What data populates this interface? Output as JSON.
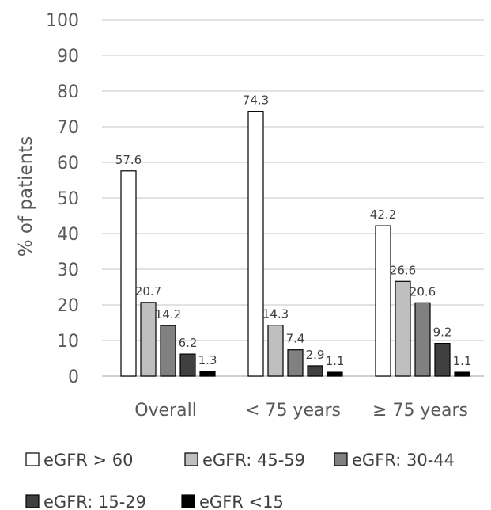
{
  "chart_data": {
    "type": "bar",
    "title": "",
    "xlabel": "",
    "ylabel": "% of patients",
    "ylim": [
      0,
      100
    ],
    "yticks": [
      0,
      10,
      20,
      30,
      40,
      50,
      60,
      70,
      80,
      90,
      100
    ],
    "grid": true,
    "legend_position": "bottom",
    "categories": [
      "Overall",
      "< 75 years",
      "≥ 75 years"
    ],
    "series": [
      {
        "name": "eGFR > 60",
        "color": "#ffffff",
        "values": [
          57.6,
          74.3,
          42.2
        ]
      },
      {
        "name": "eGFR: 45-59",
        "color": "#bfbfbf",
        "values": [
          20.7,
          14.3,
          26.6
        ]
      },
      {
        "name": "eGFR: 30-44",
        "color": "#808080",
        "values": [
          14.2,
          7.4,
          20.6
        ]
      },
      {
        "name": "eGFR: 15-29",
        "color": "#404040",
        "values": [
          6.2,
          2.9,
          9.2
        ]
      },
      {
        "name": "eGFR <15",
        "color": "#000000",
        "values": [
          1.3,
          1.1,
          1.1
        ]
      }
    ]
  }
}
